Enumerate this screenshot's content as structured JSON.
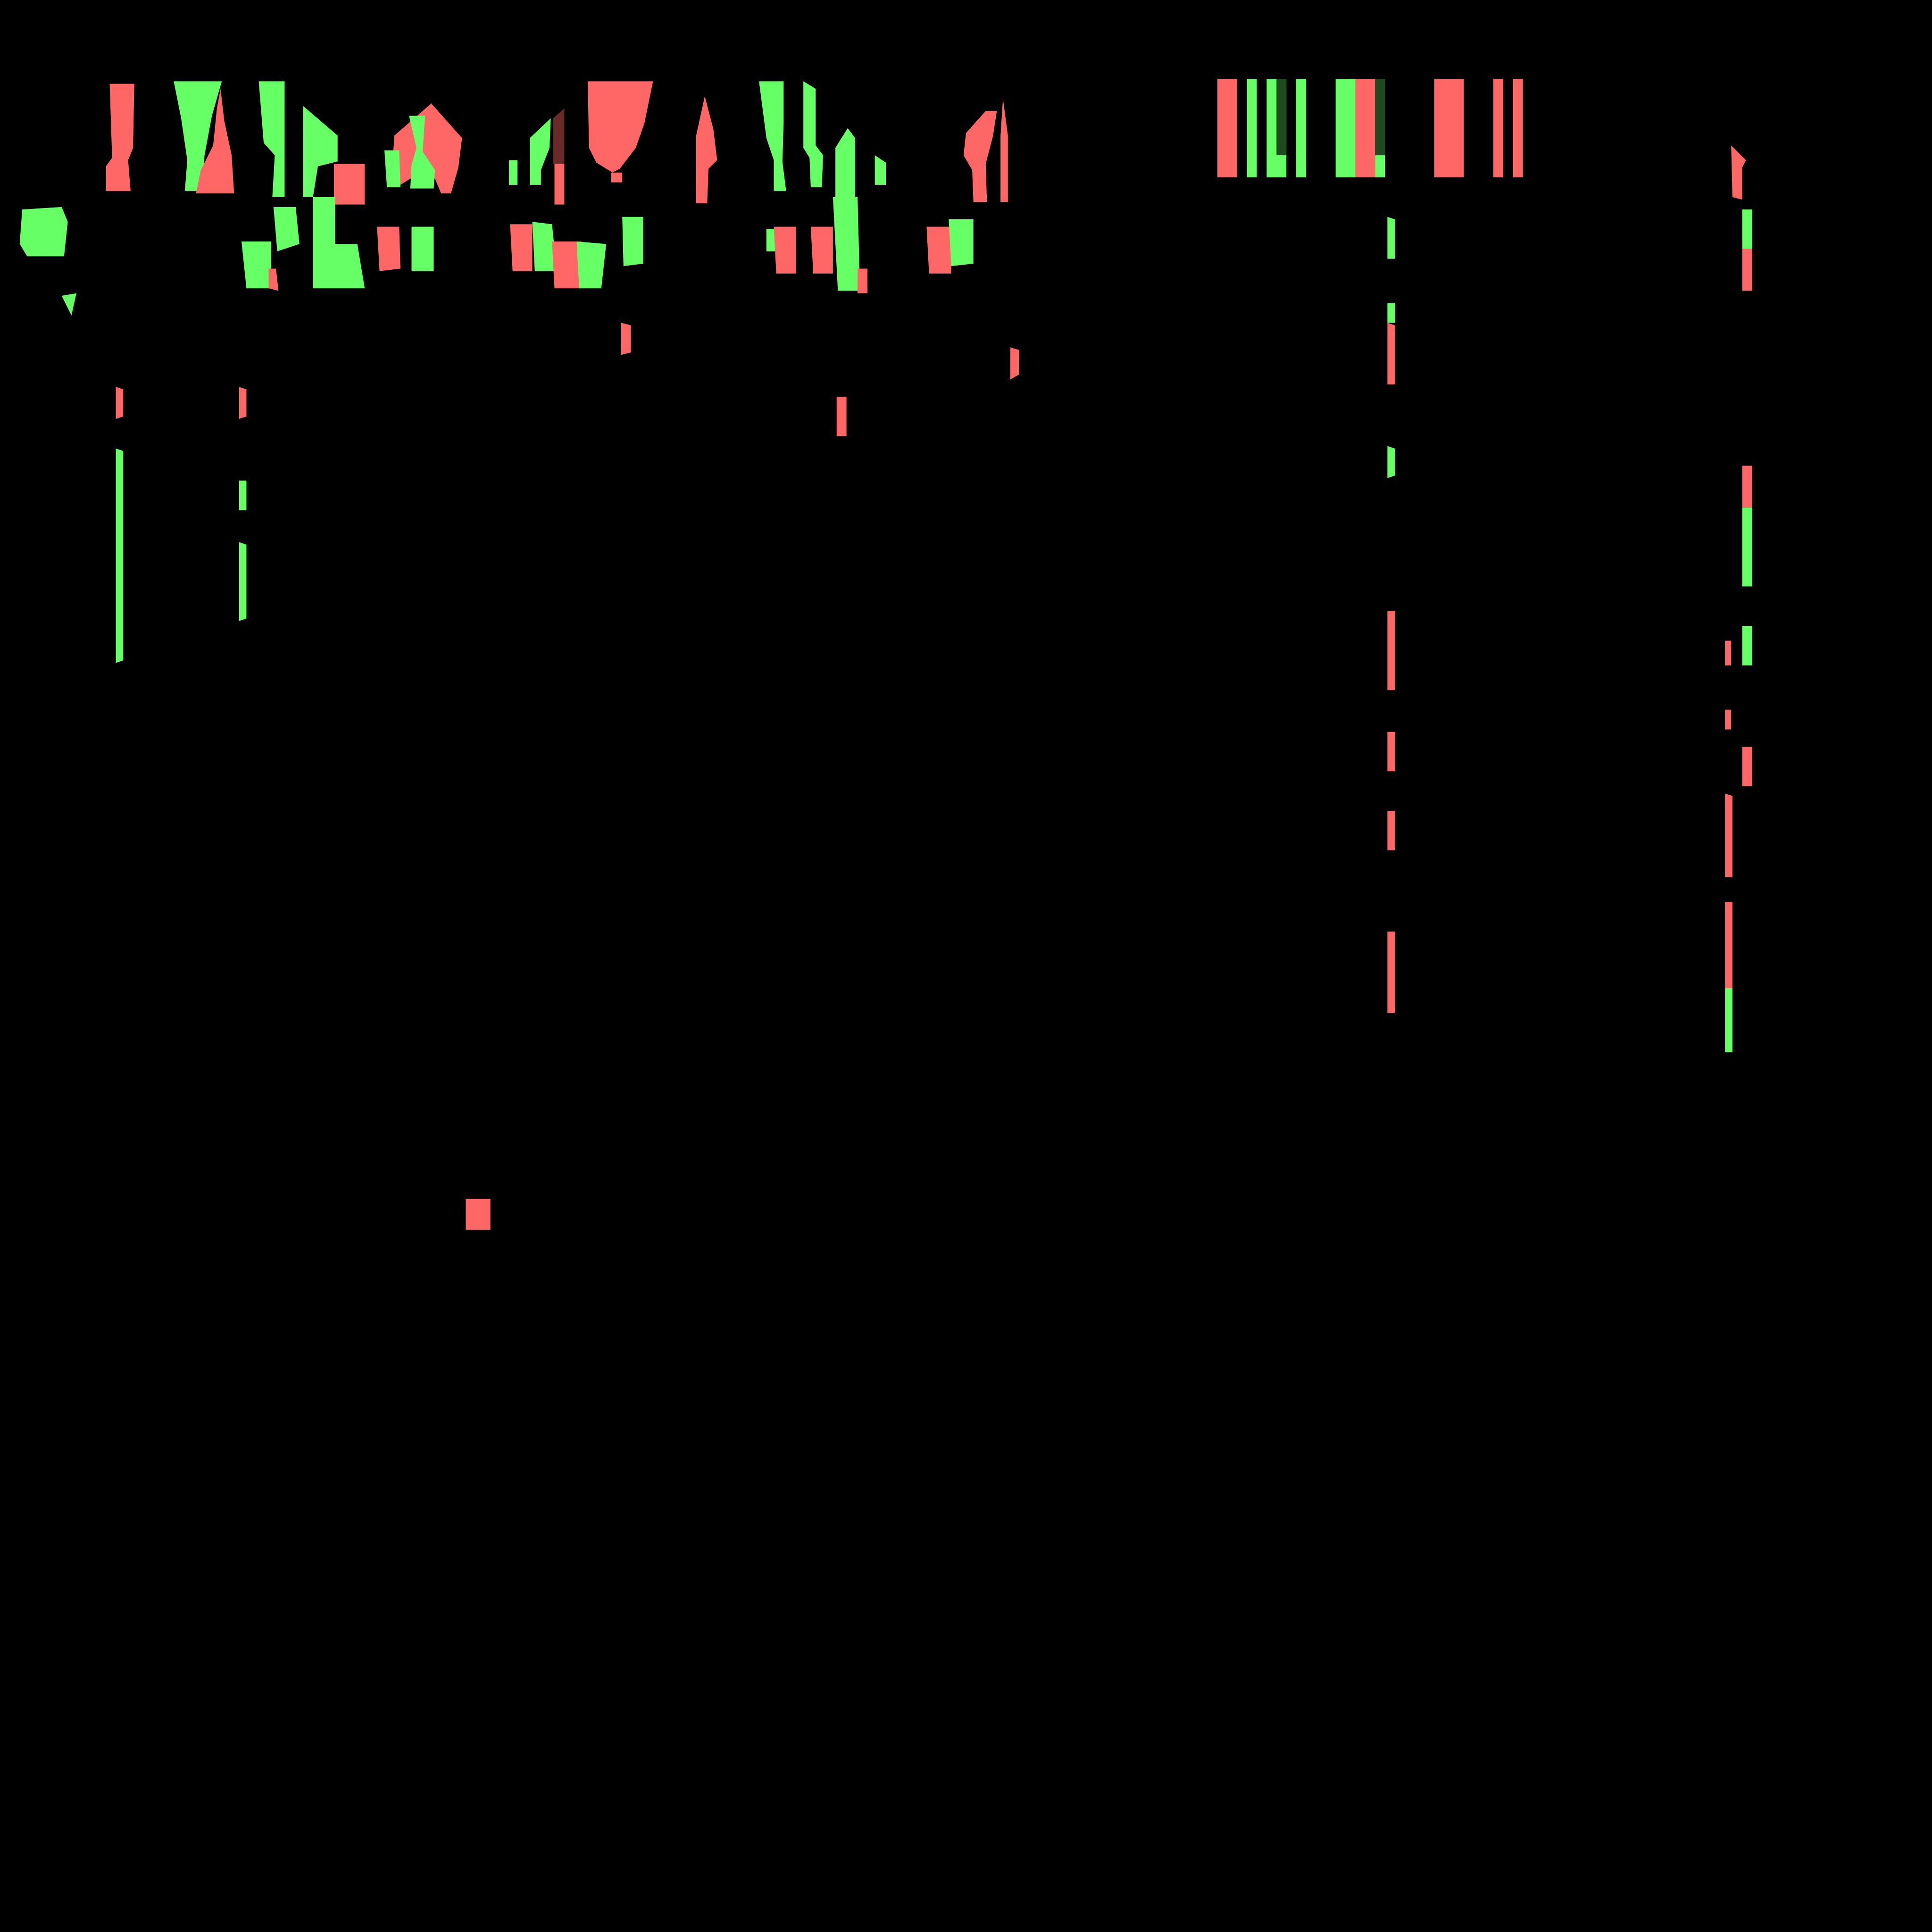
{
  "background_color": "#000000",
  "palette": {
    "added": "#66ff66",
    "removed": "#ff6666",
    "dim_added": "#1f4a1f",
    "dim_removed": "#6a2a2a"
  }
}
